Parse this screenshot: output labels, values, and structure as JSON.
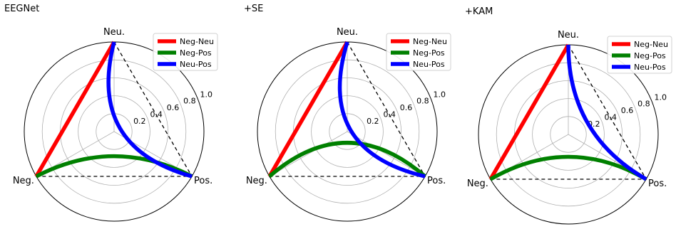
{
  "chart_data": [
    {
      "type": "radar",
      "title": "EEGNet",
      "axes": [
        "Neu.",
        "Pos.",
        "Neg."
      ],
      "radial_ticks": [
        "0.2",
        "0.4",
        "0.6",
        "0.8",
        "1.0"
      ],
      "rlim": [
        0,
        1.0
      ],
      "grid": true,
      "legend_position": "upper-right",
      "series": [
        {
          "name": "Neg-Neu",
          "color": "#ff0000",
          "from": "Neg.",
          "to": "Neu.",
          "bend": 0.0
        },
        {
          "name": "Neg-Pos",
          "color": "#008000",
          "from": "Neg.",
          "to": "Pos.",
          "bend": 0.45
        },
        {
          "name": "Neu-Pos",
          "color": "#0000ff",
          "from": "Neu.",
          "to": "Pos.",
          "bend": 0.85
        }
      ]
    },
    {
      "type": "radar",
      "title": "+SE",
      "axes": [
        "Neu.",
        "Pos.",
        "Neg."
      ],
      "radial_ticks": [
        "0.2",
        "0.4",
        "0.6",
        "0.8",
        "1.0"
      ],
      "rlim": [
        0,
        1.0
      ],
      "grid": true,
      "legend_position": "upper-right",
      "series": [
        {
          "name": "Neg-Neu",
          "color": "#ff0000",
          "from": "Neg.",
          "to": "Neu.",
          "bend": 0.0
        },
        {
          "name": "Neg-Pos",
          "color": "#008000",
          "from": "Neg.",
          "to": "Pos.",
          "bend": 0.75
        },
        {
          "name": "Neu-Pos",
          "color": "#0000ff",
          "from": "Neu.",
          "to": "Pos.",
          "bend": 0.92
        }
      ]
    },
    {
      "type": "radar",
      "title": "+KAM",
      "axes": [
        "Neu.",
        "Pos.",
        "Neg."
      ],
      "radial_ticks": [
        "0.2",
        "0.4",
        "0.6",
        "0.8",
        "1.0"
      ],
      "rlim": [
        0,
        1.0
      ],
      "grid": true,
      "legend_position": "upper-right",
      "series": [
        {
          "name": "Neg-Neu",
          "color": "#ff0000",
          "from": "Neg.",
          "to": "Neu.",
          "bend": 0.0
        },
        {
          "name": "Neg-Pos",
          "color": "#008000",
          "from": "Neg.",
          "to": "Pos.",
          "bend": 0.5
        },
        {
          "name": "Neu-Pos",
          "color": "#0000ff",
          "from": "Neu.",
          "to": "Pos.",
          "bend": 0.5
        }
      ]
    }
  ]
}
